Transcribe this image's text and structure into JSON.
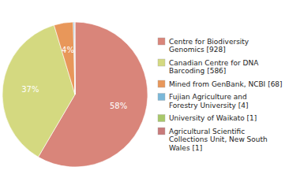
{
  "chart_data": {
    "type": "pie",
    "labels": [
      "Centre for Biodiversity\nGenomics [928]",
      "Canadian Centre for DNA\nBarcoding [586]",
      "Mined from GenBank, NCBI [68]",
      "Fujian Agriculture and\nForestry University [4]",
      "University of Waikato [1]",
      "Agricultural Scientific\nCollections Unit, New South\nWales [1]"
    ],
    "values": [
      928,
      586,
      68,
      4,
      1,
      1
    ],
    "percentages": [
      58,
      37,
      4,
      null,
      null,
      null
    ],
    "percentage_labels": [
      "58%",
      "37%",
      "4%",
      null,
      null,
      null
    ],
    "colors": [
      "#d9857a",
      "#d4d980",
      "#e8975a",
      "#7ab8d9",
      "#a8c86a",
      "#c87a7a"
    ],
    "legend": "right"
  }
}
